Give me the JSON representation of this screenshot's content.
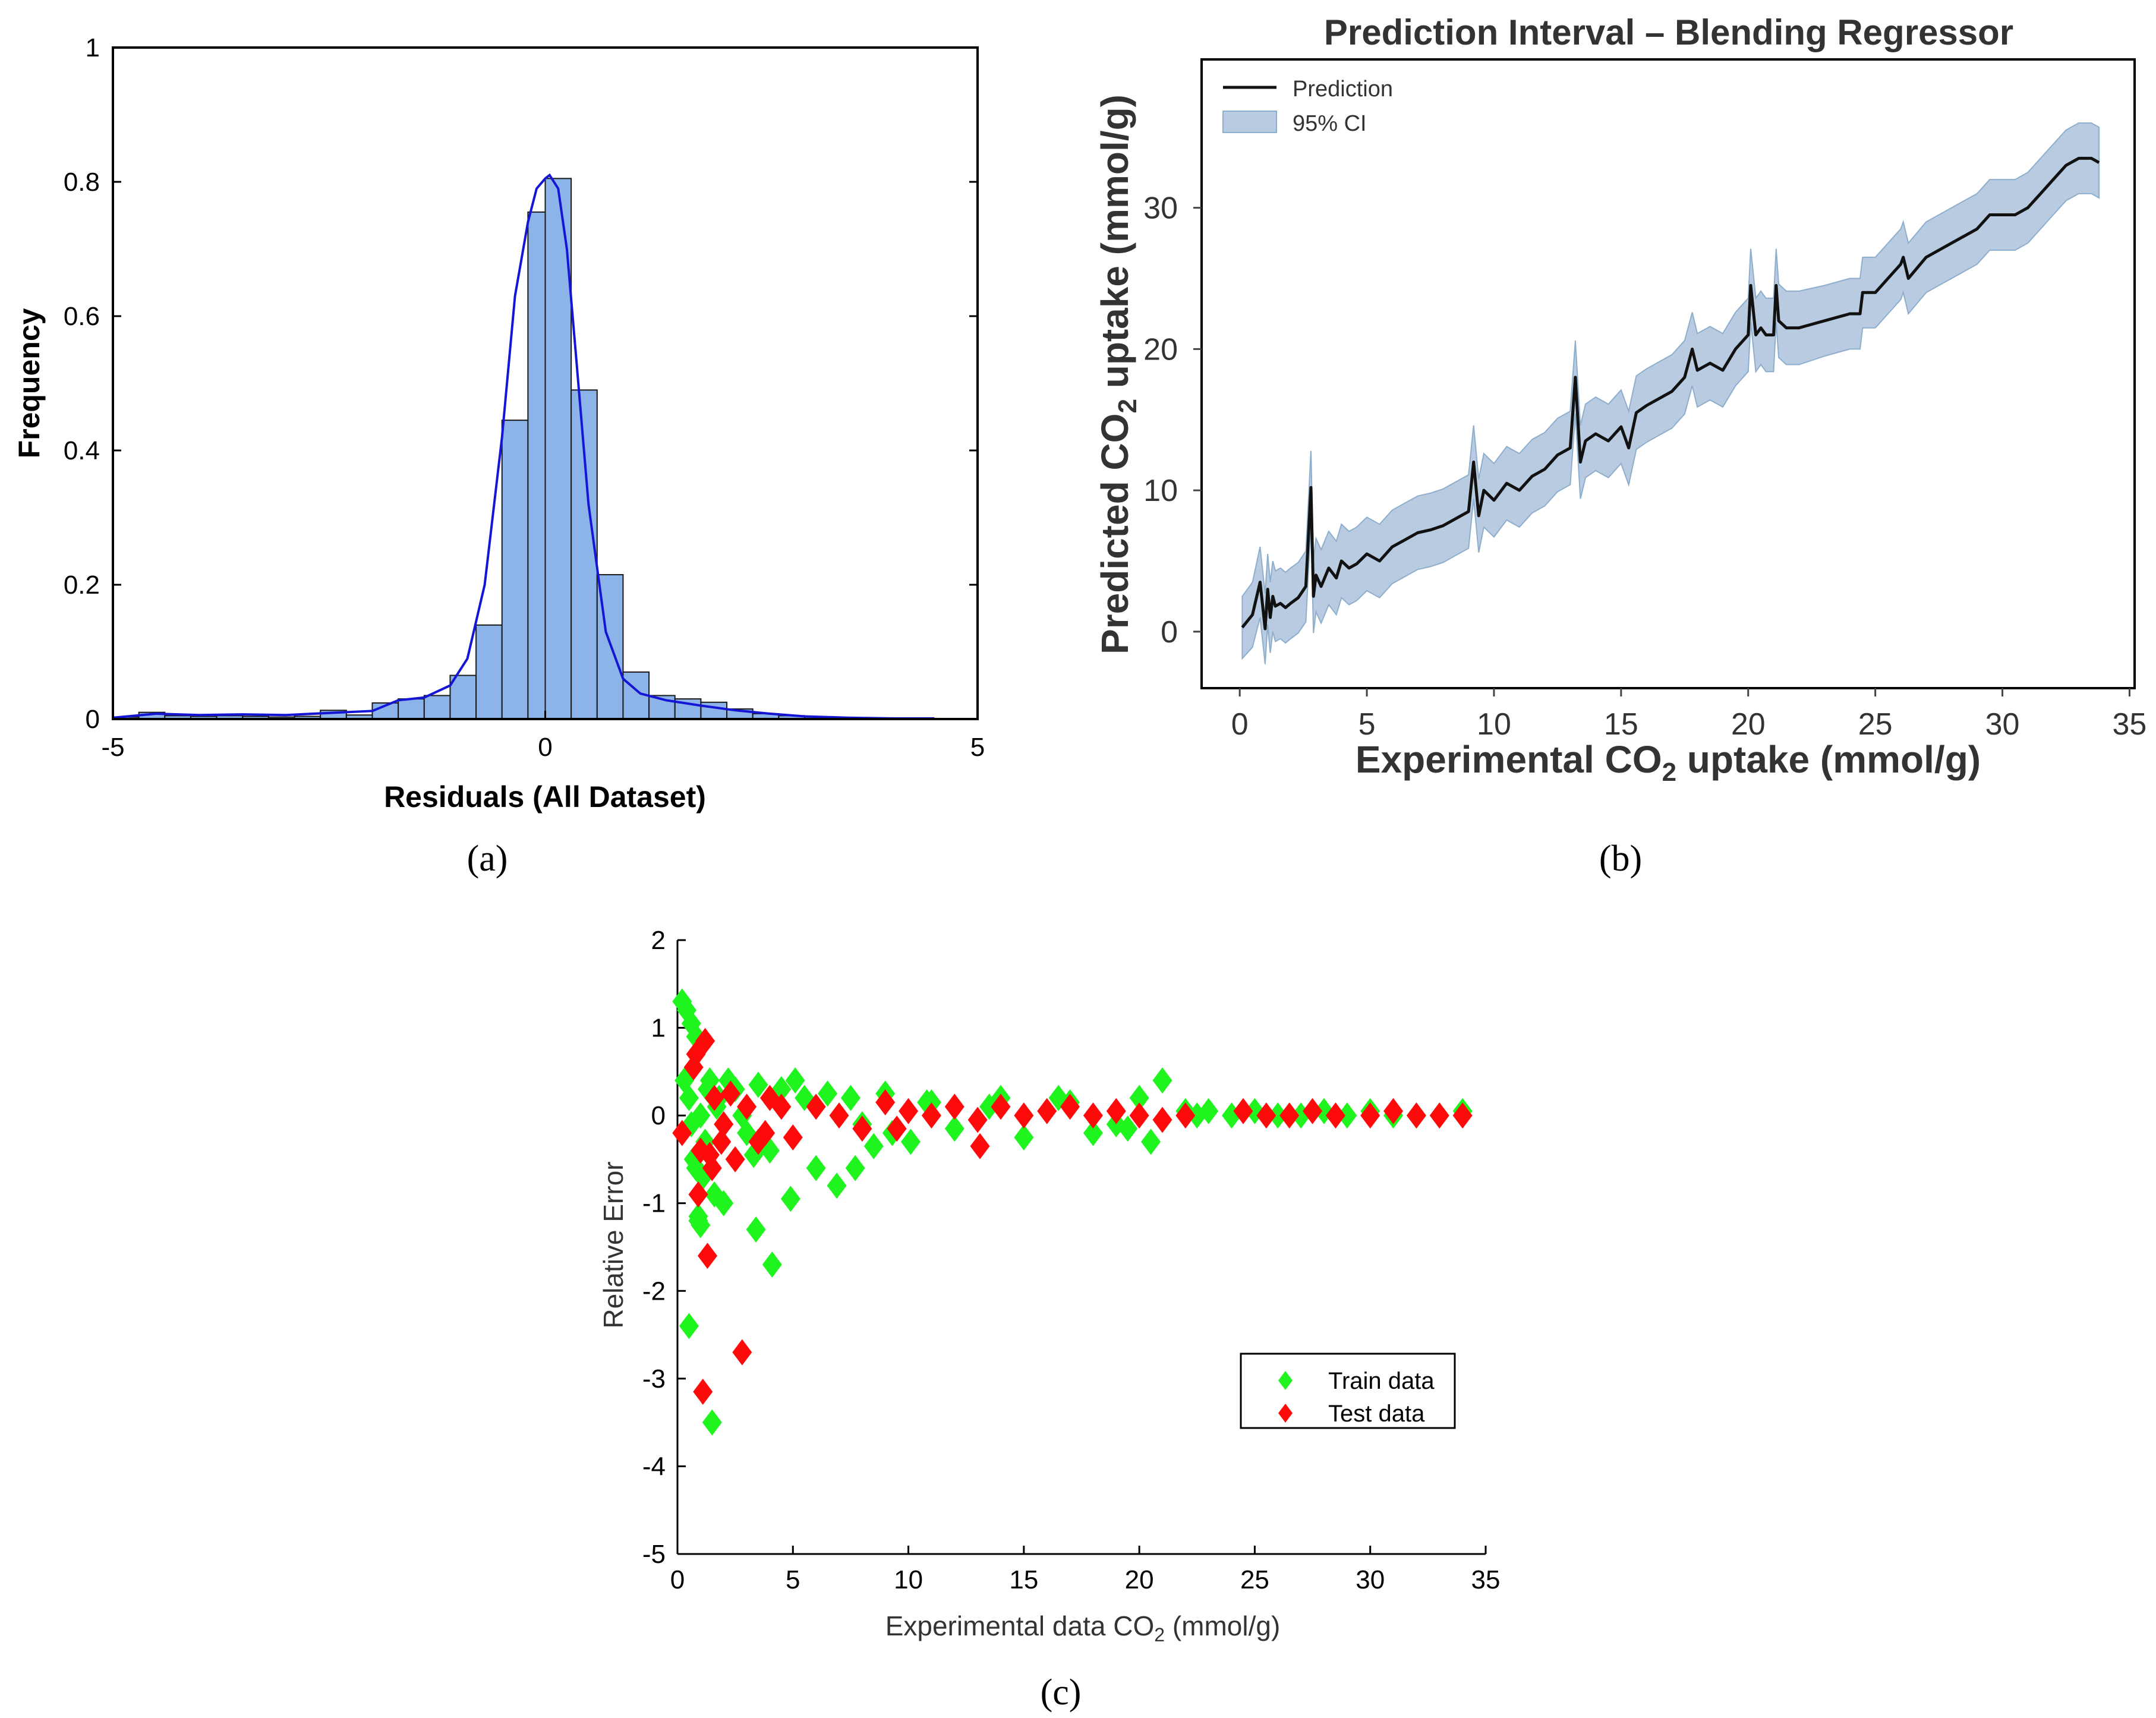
{
  "chart_data": [
    {
      "id": "a",
      "type": "bar",
      "caption": "(a)",
      "xlabel": "Residuals (All Dataset)",
      "ylabel": "Frequency",
      "xlim": [
        -5,
        5
      ],
      "ylim": [
        0,
        1
      ],
      "xticks": [
        "-5",
        "0",
        "5"
      ],
      "yticks": [
        "0",
        "0.2",
        "0.4",
        "0.6",
        "0.8",
        "1"
      ],
      "bins": {
        "left_edges": [
          -5.0,
          -4.7,
          -4.4,
          -4.1,
          -3.8,
          -3.5,
          -3.2,
          -2.9,
          -2.6,
          -2.3,
          -2.0,
          -1.7,
          -1.4,
          -1.1,
          -0.8,
          -0.5,
          -0.2,
          0.0,
          0.3,
          0.6,
          0.9,
          1.2,
          1.5,
          1.8,
          2.1,
          2.4,
          2.7,
          3.0,
          3.3,
          3.6,
          3.9,
          4.2
        ],
        "width": 0.3,
        "values": [
          0.003,
          0.01,
          0.005,
          0.004,
          0.005,
          0.004,
          0.003,
          0.004,
          0.013,
          0.006,
          0.024,
          0.03,
          0.035,
          0.065,
          0.14,
          0.445,
          0.755,
          0.805,
          0.49,
          0.215,
          0.07,
          0.035,
          0.03,
          0.025,
          0.015,
          0.008,
          0.005,
          0.003,
          0.002,
          0.001,
          0.001,
          0.001
        ]
      },
      "kde": {
        "x": [
          -5,
          -4.5,
          -4.0,
          -3.5,
          -3.0,
          -2.5,
          -2.0,
          -1.7,
          -1.4,
          -1.1,
          -0.9,
          -0.7,
          -0.5,
          -0.35,
          -0.2,
          -0.1,
          0.0,
          0.05,
          0.15,
          0.25,
          0.35,
          0.5,
          0.7,
          0.9,
          1.1,
          1.4,
          1.8,
          2.2,
          2.6,
          3.0,
          3.5,
          4.0,
          4.5
        ],
        "y": [
          0.002,
          0.008,
          0.006,
          0.007,
          0.006,
          0.009,
          0.012,
          0.028,
          0.032,
          0.05,
          0.09,
          0.2,
          0.42,
          0.63,
          0.74,
          0.79,
          0.805,
          0.81,
          0.79,
          0.7,
          0.55,
          0.32,
          0.13,
          0.06,
          0.038,
          0.028,
          0.02,
          0.013,
          0.008,
          0.004,
          0.002,
          0.001,
          0.001
        ]
      },
      "colors": {
        "bar": "#8db4e8",
        "edge": "#1a1a1a",
        "kde": "#1515d6"
      }
    },
    {
      "id": "b",
      "type": "line",
      "caption": "(b)",
      "title": "Prediction Interval – Blending Regressor",
      "xlabel_main": "Experimental CO",
      "xlabel_sub": "2",
      "xlabel_tail": " uptake (mmol/g)",
      "ylabel_main": "Predicted CO",
      "ylabel_sub": "2",
      "ylabel_tail": " uptake (mmol/g)",
      "xlim": [
        -1.5,
        35.2
      ],
      "ylim": [
        -4.0,
        40.5
      ],
      "xticks": [
        "0",
        "5",
        "10",
        "15",
        "20",
        "25",
        "30",
        "35"
      ],
      "yticks": [
        "0",
        "10",
        "20",
        "30"
      ],
      "legend": [
        {
          "label": "Prediction"
        },
        {
          "label": "95% CI"
        }
      ],
      "series": {
        "x": [
          0.1,
          0.5,
          0.8,
          1.0,
          1.1,
          1.2,
          1.3,
          1.4,
          1.6,
          1.8,
          2.0,
          2.3,
          2.6,
          2.8,
          2.9,
          3.0,
          3.2,
          3.5,
          3.8,
          4.0,
          4.3,
          4.6,
          5.0,
          5.5,
          6.0,
          6.5,
          7.0,
          7.5,
          8.0,
          8.5,
          9.0,
          9.2,
          9.4,
          9.6,
          10.0,
          10.5,
          11.0,
          11.5,
          12.0,
          12.5,
          13.0,
          13.2,
          13.4,
          13.6,
          14.0,
          14.5,
          15.0,
          15.3,
          15.6,
          16.0,
          16.5,
          17.0,
          17.5,
          17.8,
          18.0,
          18.5,
          19.0,
          19.5,
          20.0,
          20.1,
          20.3,
          20.5,
          20.7,
          21.0,
          21.1,
          21.2,
          21.5,
          22.0,
          23.0,
          24.0,
          24.4,
          24.5,
          25.0,
          25.5,
          26.0,
          26.1,
          26.3,
          27.0,
          28.0,
          29.0,
          29.5,
          30.0,
          30.5,
          31.0,
          31.5,
          32.0,
          32.5,
          33.0,
          33.5,
          33.8
        ],
        "y": [
          0.3,
          1.2,
          3.5,
          0.2,
          3.0,
          1.0,
          2.5,
          1.8,
          2.0,
          1.7,
          2.0,
          2.4,
          3.2,
          10.2,
          2.5,
          4.0,
          3.2,
          4.5,
          3.8,
          5.0,
          4.5,
          4.8,
          5.5,
          5.0,
          6.0,
          6.5,
          7.0,
          7.2,
          7.5,
          8.0,
          8.5,
          12.0,
          8.2,
          10.0,
          9.3,
          10.5,
          10.0,
          11.0,
          11.5,
          12.5,
          13.0,
          18.0,
          12.0,
          13.5,
          14.0,
          13.5,
          14.5,
          13.0,
          15.5,
          16.0,
          16.5,
          17.0,
          18.0,
          20.0,
          18.5,
          19.0,
          18.5,
          20.0,
          21.0,
          24.5,
          21.0,
          21.5,
          21.0,
          21.0,
          24.5,
          22.0,
          21.5,
          21.5,
          22.0,
          22.5,
          22.5,
          24.0,
          24.0,
          25.0,
          26.0,
          26.5,
          25.0,
          26.5,
          27.5,
          28.5,
          29.5,
          29.5,
          29.5,
          30.0,
          31.0,
          32.0,
          33.0,
          33.5,
          33.5,
          33.2
        ],
        "ci_half_width": [
          2.2,
          2.3,
          2.5,
          2.5,
          2.5,
          2.5,
          2.5,
          2.5,
          2.5,
          2.5,
          2.5,
          2.5,
          2.5,
          2.6,
          2.6,
          2.6,
          2.6,
          2.6,
          2.6,
          2.6,
          2.6,
          2.6,
          2.6,
          2.6,
          2.6,
          2.6,
          2.6,
          2.6,
          2.6,
          2.6,
          2.6,
          2.6,
          2.6,
          2.6,
          2.6,
          2.6,
          2.6,
          2.6,
          2.6,
          2.6,
          2.6,
          2.6,
          2.6,
          2.6,
          2.6,
          2.6,
          2.6,
          2.6,
          2.6,
          2.6,
          2.6,
          2.6,
          2.6,
          2.6,
          2.6,
          2.6,
          2.6,
          2.6,
          2.6,
          2.6,
          2.6,
          2.6,
          2.6,
          2.6,
          2.6,
          2.6,
          2.6,
          2.6,
          2.5,
          2.5,
          2.5,
          2.5,
          2.5,
          2.5,
          2.5,
          2.5,
          2.5,
          2.5,
          2.5,
          2.5,
          2.5,
          2.5,
          2.5,
          2.5,
          2.5,
          2.5,
          2.5,
          2.5,
          2.5,
          2.5
        ]
      },
      "colors": {
        "line": "#111111",
        "ci": "#b8cbe0",
        "ci_edge": "#8eaecd"
      }
    },
    {
      "id": "c",
      "type": "scatter",
      "caption": "(c)",
      "xlabel_main": "Experimental data CO",
      "xlabel_sub": "2",
      "xlabel_tail": " (mmol/g)",
      "ylabel": "Relative Error",
      "xlim": [
        0,
        35
      ],
      "ylim": [
        -5,
        2
      ],
      "xticks": [
        "0",
        "5",
        "10",
        "15",
        "20",
        "25",
        "30",
        "35"
      ],
      "yticks": [
        "-5",
        "-4",
        "-3",
        "-2",
        "-1",
        "0",
        "1",
        "2"
      ],
      "series": [
        {
          "name": "Train data",
          "color": "#1ff41f",
          "x": [
            0.2,
            0.4,
            0.6,
            0.8,
            0.3,
            0.5,
            0.7,
            0.9,
            1.0,
            1.2,
            1.4,
            1.6,
            0.6,
            0.8,
            1.0,
            1.3,
            0.5,
            0.9,
            1.5,
            2.0,
            3.4,
            4.1,
            3.3,
            4.9,
            5.1,
            6.0,
            6.9,
            7.7,
            8.5,
            9.3,
            10.1,
            10.8,
            12.0,
            13.5,
            15.0,
            16.5,
            18.0,
            19.5,
            20.5,
            21.0,
            22.0,
            23.0,
            24.0,
            25.0,
            26.0,
            27.0,
            28.0,
            29.0,
            30.0,
            31.0,
            32.0,
            33.0,
            34.0,
            2.5,
            3.0,
            3.5,
            4.0,
            4.5,
            5.5,
            6.5,
            7.5,
            8.0,
            9.0,
            11.0,
            14.0,
            17.0,
            19.0,
            20.0,
            22.5,
            1.8,
            2.2,
            2.8,
            1.1,
            1.7
          ],
          "y": [
            1.3,
            1.2,
            1.05,
            0.9,
            0.4,
            0.2,
            -0.5,
            -1.15,
            -1.25,
            -0.3,
            0.4,
            -0.9,
            -0.1,
            -0.6,
            0.0,
            0.3,
            -2.4,
            -1.2,
            -3.5,
            -1.0,
            -1.3,
            -1.7,
            -0.45,
            -0.95,
            0.4,
            -0.6,
            -0.8,
            -0.6,
            -0.35,
            -0.2,
            -0.3,
            0.15,
            -0.15,
            0.1,
            -0.25,
            0.2,
            -0.2,
            -0.15,
            -0.3,
            0.4,
            0.05,
            0.05,
            0.0,
            0.05,
            0.0,
            0.0,
            0.05,
            0.0,
            0.05,
            0.0,
            0.0,
            0.0,
            0.05,
            0.3,
            -0.2,
            0.35,
            -0.4,
            0.3,
            0.2,
            0.25,
            0.2,
            -0.1,
            0.25,
            0.15,
            0.2,
            0.15,
            -0.1,
            0.2,
            0.0,
            0.2,
            0.4,
            0.0,
            -0.7,
            0.1
          ]
        },
        {
          "name": "Test data",
          "color": "#ff0a0a",
          "x": [
            0.2,
            0.7,
            0.9,
            1.2,
            1.1,
            1.3,
            0.8,
            1.5,
            2.8,
            1.0,
            1.6,
            2.0,
            2.5,
            3.0,
            3.5,
            4.0,
            5.0,
            6.0,
            7.0,
            8.0,
            9.0,
            10.0,
            11.0,
            12.0,
            13.0,
            14.0,
            15.0,
            16.0,
            17.0,
            18.0,
            19.0,
            20.0,
            21.0,
            22.0,
            24.5,
            25.5,
            26.5,
            27.5,
            28.5,
            30.0,
            31.0,
            32.0,
            33.0,
            34.0,
            1.9,
            2.3,
            3.8,
            4.5,
            9.5,
            13.1,
            1.4
          ],
          "y": [
            -0.2,
            0.55,
            -0.9,
            0.85,
            -3.15,
            -1.6,
            0.7,
            -0.6,
            -2.7,
            -0.4,
            0.2,
            -0.1,
            -0.5,
            0.1,
            -0.3,
            0.2,
            -0.25,
            0.1,
            0.0,
            -0.15,
            0.15,
            0.05,
            0.0,
            0.1,
            -0.05,
            0.1,
            0.0,
            0.05,
            0.1,
            0.0,
            0.05,
            0.0,
            -0.05,
            0.0,
            0.05,
            0.0,
            0.0,
            0.05,
            0.0,
            0.0,
            0.05,
            0.0,
            0.0,
            0.0,
            -0.3,
            0.25,
            -0.2,
            0.1,
            -0.15,
            -0.35,
            -0.45
          ]
        }
      ]
    }
  ]
}
